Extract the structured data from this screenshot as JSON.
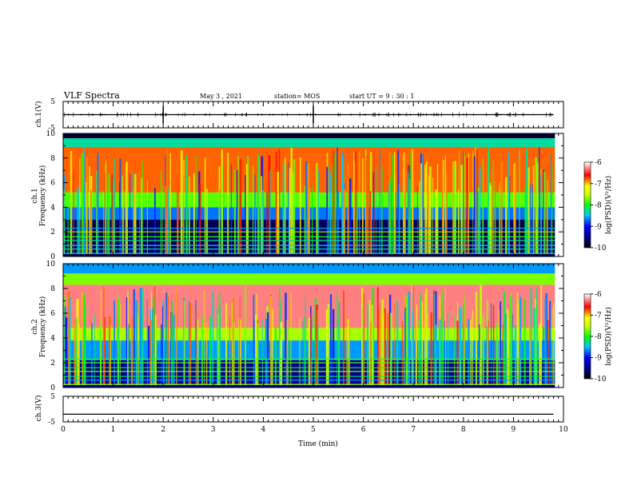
{
  "header": {
    "title": "VLF Spectra",
    "date": "May 3  , 2021",
    "station": "station= MOS",
    "start": "start  UT  =   9  : 30 : 1"
  },
  "chart_data": [
    {
      "type": "line",
      "panel": "ch1-voltage",
      "ylabel": "ch.1(V)",
      "ylim": [
        -5,
        5
      ],
      "yticks": [
        "5",
        "-5"
      ],
      "xlim": [
        0,
        10
      ],
      "series": [
        {
          "x": [
            0,
            9.8
          ],
          "values": [
            0,
            0
          ]
        }
      ]
    },
    {
      "type": "heatmap",
      "panel": "ch1-spectrogram",
      "ylabel": "ch.1\nFrequency (kHz)",
      "ylim": [
        0,
        10
      ],
      "yticks": [
        "0",
        "2",
        "4",
        "6",
        "8",
        "10"
      ],
      "xlim": [
        0,
        10
      ],
      "data_xmax": 9.83,
      "bands": [
        {
          "f_low": 9.6,
          "f_high": 10.0,
          "level": -9.8
        },
        {
          "f_low": 8.9,
          "f_high": 9.6,
          "level": -8.3
        },
        {
          "f_low": 5.2,
          "f_high": 8.9,
          "level": -6.8
        },
        {
          "f_low": 4.0,
          "f_high": 5.2,
          "level": -7.8
        },
        {
          "f_low": 3.0,
          "f_high": 4.0,
          "level": -8.7
        },
        {
          "f_low": 0.0,
          "f_high": 3.0,
          "level": -9.7
        }
      ],
      "colorbar": {
        "label": "log(PSD)(V²/Hz)",
        "range": [
          -10,
          -6
        ],
        "ticks": [
          "-6",
          "-7",
          "-8",
          "-9",
          "-10"
        ]
      }
    },
    {
      "type": "heatmap",
      "panel": "ch2-spectrogram",
      "ylabel": "ch.2\nFrequency (kHz)",
      "ylim": [
        0,
        10
      ],
      "yticks": [
        "0",
        "2",
        "4",
        "6",
        "8",
        "10"
      ],
      "xlim": [
        0,
        10
      ],
      "data_xmax": 9.83,
      "bands": [
        {
          "f_low": 9.2,
          "f_high": 10.0,
          "level": -8.6
        },
        {
          "f_low": 8.3,
          "f_high": 9.2,
          "level": -7.7
        },
        {
          "f_low": 4.8,
          "f_high": 8.3,
          "level": -6.3
        },
        {
          "f_low": 3.8,
          "f_high": 4.8,
          "level": -7.6
        },
        {
          "f_low": 2.2,
          "f_high": 3.8,
          "level": -8.6
        },
        {
          "f_low": 0.0,
          "f_high": 2.2,
          "level": -9.5
        }
      ],
      "colorbar": {
        "label": "log(PSD)(V²/Hz)",
        "range": [
          -10,
          -6
        ],
        "ticks": [
          "-6",
          "-7",
          "-8",
          "-9",
          "-10"
        ]
      }
    },
    {
      "type": "line",
      "panel": "ch3-voltage",
      "ylabel": "ch.3(V)",
      "ylim": [
        -5,
        5
      ],
      "yticks": [
        "5",
        "-5"
      ],
      "xlim": [
        0,
        10
      ],
      "xticks": [
        "0",
        "1",
        "2",
        "3",
        "4",
        "5",
        "6",
        "7",
        "8",
        "9",
        "10"
      ],
      "xlabel": "Time  (min)",
      "series": [
        {
          "x": [
            0,
            9.8
          ],
          "values": [
            -2,
            -2
          ]
        }
      ]
    }
  ]
}
